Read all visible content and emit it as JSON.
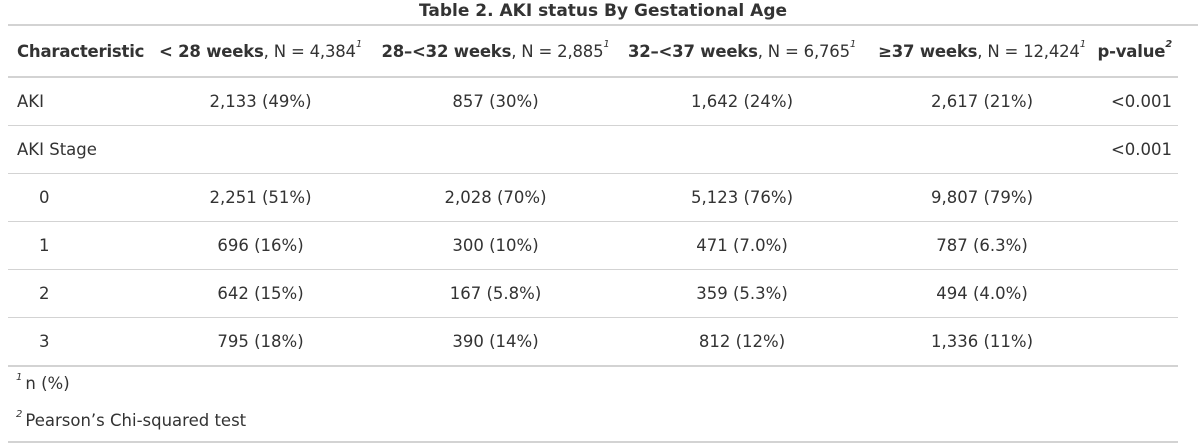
{
  "title": "Table 2. AKI status By Gestational Age",
  "header": {
    "characteristic": "Characteristic",
    "groups": [
      {
        "label": "< 28 weeks",
        "n": ", N = 4,384",
        "mark": "1"
      },
      {
        "label": "28–<32 weeks",
        "n": ", N = 2,885",
        "mark": "1"
      },
      {
        "label": "32–<37 weeks",
        "n": ", N = 6,765",
        "mark": "1"
      },
      {
        "label": "≥37 weeks",
        "n": ", N = 12,424",
        "mark": "1"
      }
    ],
    "pvalue": "p-value",
    "pvalue_mark": "2"
  },
  "rows": [
    {
      "label": "AKI",
      "cells": [
        "2,133 (49%)",
        "857 (30%)",
        "1,642 (24%)",
        "2,617 (21%)"
      ],
      "p": "<0.001"
    },
    {
      "label": "AKI Stage",
      "cells": [
        "",
        "",
        "",
        ""
      ],
      "p": "<0.001"
    },
    {
      "label": "0",
      "cells": [
        "2,251 (51%)",
        "2,028 (70%)",
        "5,123 (76%)",
        "9,807 (79%)"
      ],
      "p": ""
    },
    {
      "label": "1",
      "cells": [
        "696 (16%)",
        "300 (10%)",
        "471 (7.0%)",
        "787 (6.3%)"
      ],
      "p": ""
    },
    {
      "label": "2",
      "cells": [
        "642 (15%)",
        "167 (5.8%)",
        "359 (5.3%)",
        "494 (4.0%)"
      ],
      "p": ""
    },
    {
      "label": "3",
      "cells": [
        "795 (18%)",
        "390 (14%)",
        "812 (12%)",
        "1,336 (11%)"
      ],
      "p": ""
    }
  ],
  "footnotes": [
    {
      "mark": "1",
      "text": "n (%)"
    },
    {
      "mark": "2",
      "text": "Pearson’s Chi-squared test"
    }
  ]
}
